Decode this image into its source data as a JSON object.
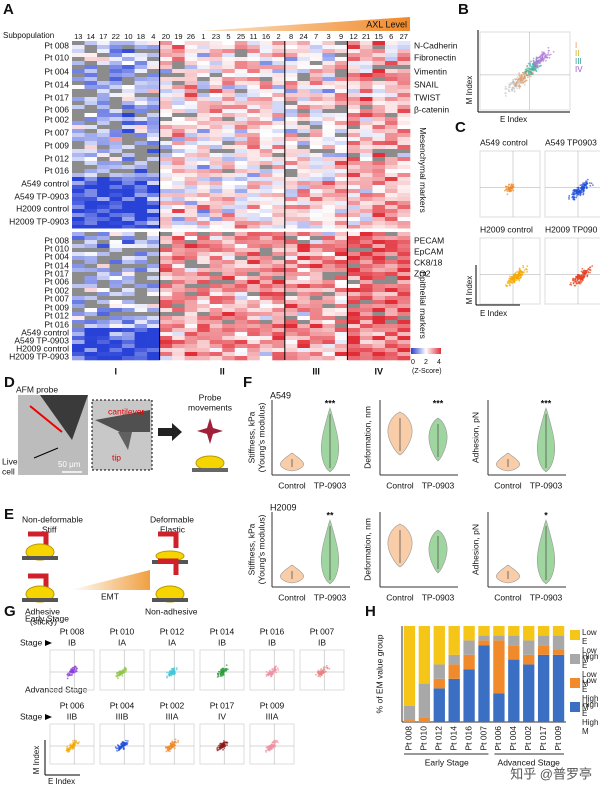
{
  "panels": {
    "A": {
      "letter": "A",
      "subpopulation_label": "Subpopulation",
      "axl_label": "AXL Level",
      "subpopulations": [
        "13",
        "14",
        "17",
        "22",
        "10",
        "18",
        "4",
        "20",
        "19",
        "26",
        "1",
        "23",
        "5",
        "25",
        "11",
        "16",
        "2",
        "8",
        "24",
        "7",
        "3",
        "9",
        "12",
        "21",
        "15",
        "6",
        "27"
      ],
      "upper_rows": [
        "Pt 008",
        "Pt 010",
        "Pt 004",
        "Pt 014",
        "Pt 017",
        "Pt 006",
        "Pt 002",
        "Pt 007",
        "Pt 009",
        "Pt 012",
        "Pt 016",
        "A549 control",
        "A549 TP-0903",
        "H2009 control",
        "H2009 TP-0903"
      ],
      "lower_rows": [
        "Pt 008",
        "Pt 010",
        "Pt 004",
        "Pt 014",
        "Pt 017",
        "Pt 006",
        "Pt 002",
        "Pt 007",
        "Pt 009",
        "Pt 012",
        "Pt 016",
        "A549 control",
        "A549 TP-0903",
        "H2009 control",
        "H2009 TP-0903"
      ],
      "mesenchymal_markers": [
        "N-Cadherin",
        "Fibronectin",
        "Vimentin",
        "SNAIL",
        "TWIST",
        "β-catenin"
      ],
      "mesenchymal_title": "Mesenchymal markers",
      "epithelial_markers": [
        "PECAM",
        "EpCAM",
        "CK8/18",
        "ZO2"
      ],
      "epithelial_title": "Epithelial markers",
      "colorbar_ticks": [
        0,
        2,
        4
      ],
      "colorbar_label": "(Z-Score)",
      "groups": [
        "I",
        "II",
        "III",
        "IV"
      ]
    },
    "B": {
      "letter": "B",
      "groups": [
        "I",
        "II",
        "III",
        "IV"
      ],
      "y_label": "M Index",
      "x_label": "E Index"
    },
    "C": {
      "letter": "C",
      "plots": [
        "A549 control",
        "A549 TP0903",
        "H2009 control",
        "H2009 TP090"
      ],
      "y_label": "M Index",
      "x_label": "E Index"
    },
    "D": {
      "letter": "D",
      "probe": "AFM probe",
      "cell": [
        "Live",
        "cell"
      ],
      "scale": "50 μm",
      "cantilever": "cantilever",
      "tip": "tip",
      "movements": [
        "Probe",
        "movements"
      ]
    },
    "E": {
      "letter": "E",
      "left_top": [
        "Non-deformable",
        "Stiff"
      ],
      "right_top": [
        "Deformable",
        "Elastic"
      ],
      "arrow": "EMT",
      "left_bottom": [
        "Adhesive",
        "(sticky)"
      ],
      "right_bottom": "Non-adhesive"
    },
    "F": {
      "letter": "F",
      "x_labels": [
        "Control",
        "TP-0903"
      ],
      "y_labels": {
        "stiffness": [
          "Stiffness, kPa",
          "(Young's modulus)"
        ],
        "deformation": "Deformation, nm",
        "adhesion": "Adhesion, pN"
      },
      "rows": [
        {
          "cell": "A549",
          "stiffness_stars": "***",
          "deformation_stars": "***",
          "adhesion_stars": "***"
        },
        {
          "cell": "H2009",
          "stiffness_stars": "**",
          "adhesion_stars": "*"
        }
      ]
    },
    "G": {
      "letter": "G",
      "early": "Early Stage",
      "advanced": "Advanced Stage",
      "stage_label": "Stage",
      "y_label": "M Index",
      "x_label": "E Index",
      "early_patients": [
        {
          "id": "Pt 008",
          "stage": "IB"
        },
        {
          "id": "Pt 010",
          "stage": "IA"
        },
        {
          "id": "Pt 012",
          "stage": "IA"
        },
        {
          "id": "Pt 014",
          "stage": "IB"
        },
        {
          "id": "Pt 016",
          "stage": "IB"
        },
        {
          "id": "Pt 007",
          "stage": "IB"
        }
      ],
      "advanced_patients": [
        {
          "id": "Pt 006",
          "stage": "IIB"
        },
        {
          "id": "Pt 004",
          "stage": "IIIB"
        },
        {
          "id": "Pt 002",
          "stage": "IIIA"
        },
        {
          "id": "Pt 017",
          "stage": "IV"
        },
        {
          "id": "Pt 009",
          "stage": "IIIA"
        }
      ]
    },
    "watermark": "知乎 @普罗亭"
  },
  "chart_data": {
    "type": "bar",
    "letter": "H",
    "stacked": true,
    "y_label": "% of EM value group",
    "categories": [
      "Pt 008",
      "Pt 010",
      "Pt 012",
      "Pt 014",
      "Pt 016",
      "Pt 007",
      "Pt 006",
      "Pt 004",
      "Pt 002",
      "Pt 017",
      "Pt 009"
    ],
    "group_labels": [
      "Early Stage",
      "Advanced Stage"
    ],
    "ylim": [
      0,
      100
    ],
    "series": [
      {
        "name": "Low E Low M",
        "color": "#f5c518",
        "values": [
          83,
          60,
          40,
          30,
          15,
          10,
          10,
          10,
          15,
          10,
          10
        ]
      },
      {
        "name": "High E Low M",
        "color": "#a8a8a8",
        "values": [
          15,
          35,
          15,
          10,
          15,
          5,
          5,
          10,
          15,
          10,
          15
        ]
      },
      {
        "name": "Low E High M",
        "color": "#f08a2a",
        "values": [
          2,
          5,
          10,
          15,
          15,
          5,
          55,
          15,
          10,
          10,
          5
        ]
      },
      {
        "name": "High E High M",
        "color": "#3a6fc4",
        "values": [
          0,
          0,
          35,
          45,
          55,
          80,
          30,
          65,
          60,
          70,
          70
        ]
      }
    ]
  }
}
